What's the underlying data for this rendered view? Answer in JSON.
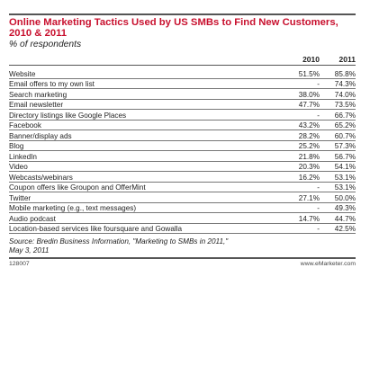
{
  "header": {
    "title": "Online Marketing Tactics Used by US SMBs to Find New Customers, 2010 & 2011",
    "subtitle": "% of respondents"
  },
  "chart_data": {
    "type": "table",
    "title": "Online Marketing Tactics Used by US SMBs to Find New Customers, 2010 & 2011",
    "subtitle": "% of respondents",
    "columns": [
      "2010",
      "2011"
    ],
    "rows": [
      {
        "label": "Website",
        "v2010": "51.5%",
        "v2011": "85.8%"
      },
      {
        "label": "Email offers to my own list",
        "v2010": "-",
        "v2011": "74.3%"
      },
      {
        "label": "Search marketing",
        "v2010": "38.0%",
        "v2011": "74.0%"
      },
      {
        "label": "Email newsletter",
        "v2010": "47.7%",
        "v2011": "73.5%"
      },
      {
        "label": "Directory listings like Google Places",
        "v2010": "-",
        "v2011": "66.7%"
      },
      {
        "label": "Facebook",
        "v2010": "43.2%",
        "v2011": "65.2%"
      },
      {
        "label": "Banner/display ads",
        "v2010": "28.2%",
        "v2011": "60.7%"
      },
      {
        "label": "Blog",
        "v2010": "25.2%",
        "v2011": "57.3%"
      },
      {
        "label": "LinkedIn",
        "v2010": "21.8%",
        "v2011": "56.7%"
      },
      {
        "label": "Video",
        "v2010": "20.3%",
        "v2011": "54.1%"
      },
      {
        "label": "Webcasts/webinars",
        "v2010": "16.2%",
        "v2011": "53.1%"
      },
      {
        "label": "Coupon offers like Groupon and OfferMint",
        "v2010": "-",
        "v2011": "53.1%"
      },
      {
        "label": "Twitter",
        "v2010": "27.1%",
        "v2011": "50.0%"
      },
      {
        "label": "Mobile marketing (e.g., text messages)",
        "v2010": "-",
        "v2011": "49.3%"
      },
      {
        "label": "Audio podcast",
        "v2010": "14.7%",
        "v2011": "44.7%"
      },
      {
        "label": "Location-based services like foursquare and Gowalla",
        "v2010": "-",
        "v2011": "42.5%"
      }
    ]
  },
  "source": {
    "line1": "Source: Bredin Business Information, \"Marketing to SMBs in 2011,\"",
    "line2": "May 3, 2011"
  },
  "footer": {
    "id": "128007",
    "site": "www.eMarketer.com"
  }
}
